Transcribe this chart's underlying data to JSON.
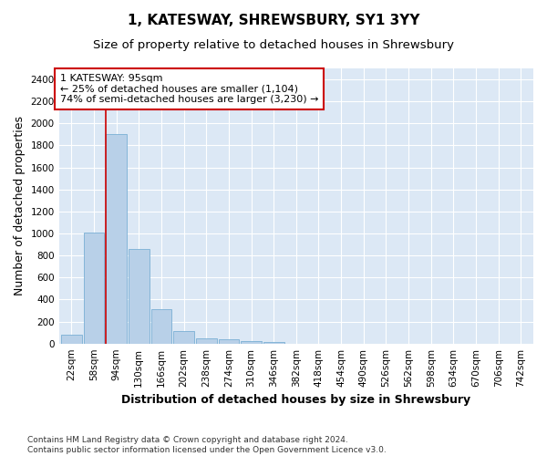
{
  "title": "1, KATESWAY, SHREWSBURY, SY1 3YY",
  "subtitle": "Size of property relative to detached houses in Shrewsbury",
  "xlabel": "Distribution of detached houses by size in Shrewsbury",
  "ylabel": "Number of detached properties",
  "footer_line1": "Contains HM Land Registry data © Crown copyright and database right 2024.",
  "footer_line2": "Contains public sector information licensed under the Open Government Licence v3.0.",
  "bar_labels": [
    "22sqm",
    "58sqm",
    "94sqm",
    "130sqm",
    "166sqm",
    "202sqm",
    "238sqm",
    "274sqm",
    "310sqm",
    "346sqm",
    "382sqm",
    "418sqm",
    "454sqm",
    "490sqm",
    "526sqm",
    "562sqm",
    "598sqm",
    "634sqm",
    "670sqm",
    "706sqm",
    "742sqm"
  ],
  "bar_values": [
    80,
    1010,
    1900,
    860,
    310,
    110,
    50,
    40,
    20,
    15,
    0,
    0,
    0,
    0,
    0,
    0,
    0,
    0,
    0,
    0,
    0
  ],
  "bar_color": "#b8d0e8",
  "bar_edge_color": "#7aafd4",
  "highlight_bar_index": 2,
  "highlight_line_color": "#cc0000",
  "annotation_text": "1 KATESWAY: 95sqm\n← 25% of detached houses are smaller (1,104)\n74% of semi-detached houses are larger (3,230) →",
  "annotation_box_facecolor": "#ffffff",
  "annotation_box_edgecolor": "#cc0000",
  "ylim": [
    0,
    2500
  ],
  "yticks": [
    0,
    200,
    400,
    600,
    800,
    1000,
    1200,
    1400,
    1600,
    1800,
    2000,
    2200,
    2400
  ],
  "title_fontsize": 11,
  "subtitle_fontsize": 9.5,
  "xlabel_fontsize": 9,
  "ylabel_fontsize": 9,
  "tick_fontsize": 7.5,
  "annotation_fontsize": 8,
  "footer_fontsize": 6.5,
  "background_color": "#ffffff",
  "plot_bg_color": "#dce8f5",
  "grid_color": "#ffffff",
  "text_color": "#000000"
}
